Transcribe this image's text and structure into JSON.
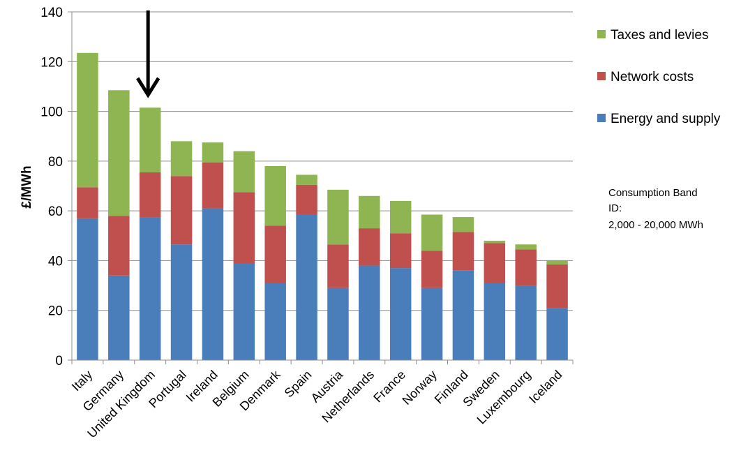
{
  "chart_data": {
    "type": "bar",
    "stacked": true,
    "categories": [
      "Italy",
      "Germany",
      "United Kingdom",
      "Portugal",
      "Ireland",
      "Belgium",
      "Denmark",
      "Spain",
      "Austria",
      "Netherlands",
      "France",
      "Norway",
      "Finland",
      "Sweden",
      "Luxembourg",
      "Iceland"
    ],
    "series": [
      {
        "name": "Energy and supply",
        "color": "#4a7ebb",
        "values": [
          57,
          34,
          57.5,
          46.5,
          61,
          39,
          31,
          58.5,
          29,
          38,
          37,
          29,
          36,
          31,
          30,
          21
        ]
      },
      {
        "name": "Network costs",
        "color": "#c0504d",
        "values": [
          12.5,
          24,
          18,
          27.5,
          18.5,
          28.5,
          23,
          12,
          17.5,
          15,
          14,
          15,
          15.5,
          16,
          14.5,
          17.5
        ]
      },
      {
        "name": "Taxes and levies",
        "color": "#8eb552",
        "values": [
          54,
          50.5,
          26,
          14,
          8,
          16.5,
          24,
          4,
          22,
          13,
          13,
          14.5,
          6,
          1,
          2,
          1.5
        ]
      }
    ],
    "legend_order": [
      "Taxes and levies",
      "Network costs",
      "Energy and supply"
    ],
    "ylabel": "£/MWh",
    "ylim": [
      0,
      140
    ],
    "yticks": [
      0,
      20,
      40,
      60,
      80,
      100,
      120,
      140
    ],
    "grid": true,
    "legend_position": "right",
    "annotation": {
      "line1": "Consumption Band",
      "line2": "ID:",
      "line3": "2,000 - 20,000 MWh"
    },
    "highlight_arrow_category": "United Kingdom"
  }
}
